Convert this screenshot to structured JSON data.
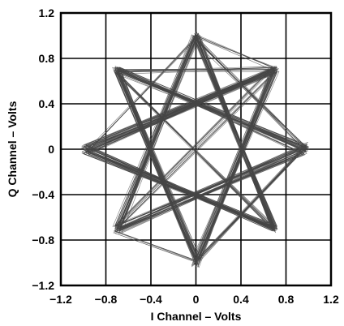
{
  "chart_data": {
    "type": "line",
    "title": "",
    "xlabel": "I Channel – Volts",
    "ylabel": "Q Channel – Volts",
    "xlim": [
      -1.2,
      1.2
    ],
    "ylim": [
      -1.2,
      1.2
    ],
    "grid": true,
    "x_ticks": [
      -1.2,
      -0.8,
      -0.4,
      0,
      0.4,
      0.8,
      1.2
    ],
    "x_tick_labels": [
      "−1.2",
      "−0.8",
      "−0.4",
      "0",
      "0.4",
      "0.8",
      "1.2"
    ],
    "y_ticks": [
      1.2,
      0.8,
      0.4,
      0,
      -0.4,
      -0.8,
      -1.2
    ],
    "y_tick_labels": [
      "1.2",
      "0.8",
      "0.4",
      "0",
      "−0.4",
      "−0.8",
      "−1.2"
    ],
    "line_color": "#444444",
    "series": [
      {
        "values_description": "constellation trajectory (8-point phase ring, radius ≈ 0.96 V)",
        "points": [
          [
            0.0,
            1.0
          ],
          [
            0.68,
            0.72
          ],
          [
            -0.72,
            -0.68
          ],
          [
            0.97,
            0.02
          ],
          [
            -0.7,
            0.7
          ],
          [
            0.02,
            -0.98
          ],
          [
            0.7,
            0.7
          ],
          [
            -0.98,
            0.0
          ],
          [
            0.68,
            -0.72
          ],
          [
            0.0,
            1.02
          ],
          [
            -0.7,
            -0.7
          ],
          [
            0.98,
            0.04
          ],
          [
            0.0,
            -1.0
          ],
          [
            -0.72,
            0.68
          ],
          [
            0.7,
            -0.7
          ],
          [
            -0.96,
            -0.04
          ],
          [
            0.72,
            0.7
          ],
          [
            0.02,
            -0.96
          ],
          [
            -0.7,
            0.72
          ],
          [
            0.98,
            -0.02
          ],
          [
            -0.68,
            -0.72
          ],
          [
            0.0,
            0.98
          ],
          [
            0.72,
            -0.68
          ],
          [
            -1.0,
            0.02
          ],
          [
            0.68,
            0.7
          ],
          [
            -0.02,
            -1.02
          ],
          [
            0.96,
            0.0
          ],
          [
            -0.72,
            0.7
          ],
          [
            0.7,
            -0.72
          ],
          [
            0.02,
            1.0
          ],
          [
            -0.96,
            -0.02
          ],
          [
            0.7,
            0.68
          ],
          [
            -0.7,
            -0.7
          ],
          [
            0.0,
            0.96
          ],
          [
            0.98,
            0.02
          ],
          [
            0.0,
            -0.98
          ],
          [
            -0.7,
            0.68
          ],
          [
            0.72,
            0.72
          ],
          [
            -0.98,
            0.04
          ],
          [
            0.7,
            -0.7
          ],
          [
            0.02,
            1.02
          ],
          [
            -0.68,
            -0.7
          ],
          [
            0.96,
            -0.04
          ],
          [
            -0.72,
            0.72
          ],
          [
            0.0,
            -1.0
          ],
          [
            0.7,
            0.7
          ],
          [
            -0.98,
            -0.02
          ],
          [
            0.68,
            -0.68
          ],
          [
            0.0,
            0.98
          ],
          [
            -0.7,
            -0.72
          ],
          [
            0.98,
            0.0
          ],
          [
            -0.7,
            0.7
          ],
          [
            0.02,
            -0.98
          ],
          [
            0.72,
            0.68
          ],
          [
            -0.96,
            0.02
          ],
          [
            0.7,
            -0.72
          ],
          [
            -0.02,
            1.0
          ],
          [
            -0.72,
            -0.68
          ],
          [
            1.0,
            0.02
          ],
          [
            -0.68,
            0.72
          ],
          [
            0.0,
            -0.96
          ],
          [
            0.7,
            0.72
          ],
          [
            -1.0,
            -0.04
          ],
          [
            0.72,
            -0.7
          ],
          [
            0.0,
            1.0
          ],
          [
            -0.7,
            -0.7
          ],
          [
            0.96,
            0.02
          ],
          [
            -0.7,
            0.68
          ],
          [
            0.02,
            -1.02
          ],
          [
            0.68,
            0.7
          ],
          [
            -0.98,
            0.0
          ],
          [
            0.7,
            -0.68
          ],
          [
            0.0,
            0.98
          ],
          [
            0.98,
            -0.02
          ],
          [
            -0.72,
            -0.72
          ],
          [
            0.0,
            -0.98
          ],
          [
            -0.7,
            0.7
          ],
          [
            0.72,
            0.7
          ],
          [
            -0.96,
            -0.02
          ],
          [
            0.68,
            -0.7
          ],
          [
            0.0,
            1.0
          ]
        ]
      }
    ]
  }
}
